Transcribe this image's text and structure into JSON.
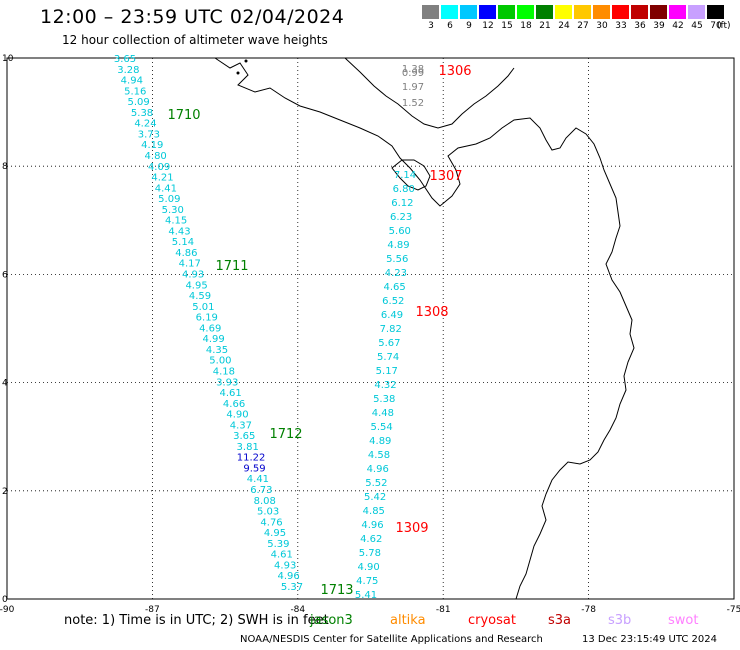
{
  "title": "12:00 – 23:59 UTC 02/04/2024",
  "subtitle": "12 hour collection of altimeter wave heights",
  "legend": {
    "labels": [
      "3",
      "6",
      "9",
      "12",
      "15",
      "18",
      "21",
      "24",
      "27",
      "30",
      "33",
      "36",
      "39",
      "42",
      "45",
      "70"
    ],
    "colors": [
      "#808080",
      "#00ffff",
      "#00c8ff",
      "#0000ff",
      "#00c800",
      "#00ff00",
      "#008000",
      "#ffff00",
      "#ffc800",
      "#ff8c00",
      "#ff0000",
      "#c00000",
      "#800000",
      "#ff00ff",
      "#c8a0ff",
      "#000000"
    ],
    "unit": "(ft)"
  },
  "map": {
    "x_ticks": [
      "-90",
      "-87",
      "-84",
      "-81",
      "-78",
      "-75"
    ],
    "y_ticks": [
      "0",
      "2",
      "4",
      "6",
      "8",
      "10"
    ],
    "track_labels": [
      {
        "text": "1710",
        "color": "#008000"
      },
      {
        "text": "1711",
        "color": "#008000"
      },
      {
        "text": "1712",
        "color": "#008000"
      },
      {
        "text": "1713",
        "color": "#008000"
      },
      {
        "text": "1306",
        "color": "#ff0000"
      },
      {
        "text": "1307",
        "color": "#ff0000"
      },
      {
        "text": "1308",
        "color": "#ff0000"
      },
      {
        "text": "1309",
        "color": "#ff0000"
      }
    ],
    "track1_values": [
      "3.65",
      "3.28",
      "4.94",
      "5.16",
      "5.09",
      "5.38",
      "4.24",
      "3.73",
      "4.19",
      "4.80",
      "4.09",
      "4.21",
      "4.41",
      "5.09",
      "5.30",
      "4.15",
      "4.43",
      "5.14",
      "4.86",
      "4.17",
      "4.93",
      "4.95",
      "4.59",
      "5.01",
      "6.19",
      "4.69",
      "4.99",
      "4.35",
      "5.00",
      "4.18",
      "3.93",
      "4.61",
      "4.66",
      "4.90",
      "4.37",
      "3.65",
      "3.81",
      "11.22",
      "9.59",
      "4.41",
      "6.73",
      "8.08",
      "5.03",
      "4.76",
      "4.95",
      "5.39",
      "4.61",
      "4.93",
      "4.96",
      "5.37"
    ],
    "track1_blue": [
      "11.22",
      "9.59"
    ],
    "track2_values": [
      "7.14",
      "6.80",
      "6.12",
      "6.23",
      "5.60",
      "4.89",
      "5.56",
      "4.23",
      "4.65",
      "6.52",
      "6.49",
      "7.82",
      "5.67",
      "5.74",
      "5.17",
      "4.32",
      "5.38",
      "4.48",
      "5.54",
      "4.89",
      "4.58",
      "4.96",
      "5.52",
      "5.42",
      "4.85",
      "4.96",
      "4.62",
      "5.78",
      "4.90",
      "4.75",
      "5.41"
    ],
    "gray_values": [
      "1.38",
      "0.99",
      "1.97",
      "1.52"
    ]
  },
  "footer": {
    "note": "note: 1) Time is in UTC; 2) SWH is in feet",
    "missions": [
      {
        "name": "jason3",
        "color": "#008000"
      },
      {
        "name": "altika",
        "color": "#ff8c00"
      },
      {
        "name": "cryosat",
        "color": "#ff0000"
      },
      {
        "name": "s3a",
        "color": "#c00000"
      },
      {
        "name": "s3b",
        "color": "#c8a0ff"
      },
      {
        "name": "swot",
        "color": "#ff80ff"
      }
    ],
    "credit": "NOAA/NESDIS Center for Satellite Applications and Research",
    "timestamp": "13 Dec 23:15:49 UTC 2024"
  }
}
